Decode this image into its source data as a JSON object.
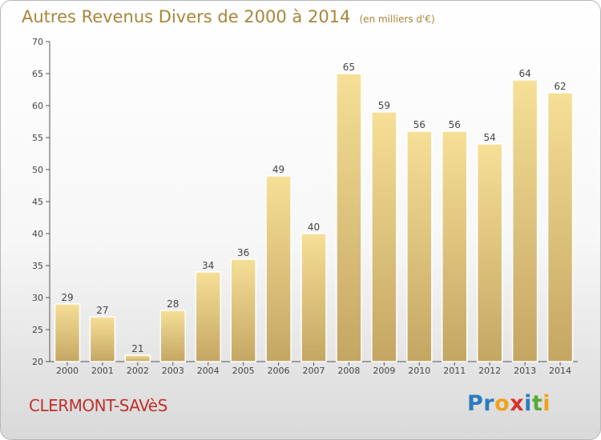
{
  "header": {
    "title": "Autres Revenus Divers de 2000 à 2014",
    "unit": "(en milliers d'€)"
  },
  "footer": {
    "commune": "CLERMONT-SAVèS",
    "logo_letters": [
      "P",
      "r",
      "o",
      "x",
      "i",
      "t",
      "i"
    ],
    "logo_colors": [
      "#2b7bbf",
      "#2b7bbf",
      "#f0a020",
      "#d9332b",
      "#2b7bbf",
      "#5aa832",
      "#f0a020"
    ]
  },
  "colors": {
    "title": "#a8863a",
    "commune": "#c0312b",
    "bar_top": "#f6df96",
    "bar_bottom": "#c4a663",
    "bar_edge": "#ffffff"
  },
  "chart_data": {
    "type": "bar",
    "categories": [
      "2000",
      "2001",
      "2002",
      "2003",
      "2004",
      "2005",
      "2006",
      "2007",
      "2008",
      "2009",
      "2010",
      "2011",
      "2012",
      "2013",
      "2014"
    ],
    "values": [
      29,
      27,
      21,
      28,
      34,
      36,
      49,
      40,
      65,
      59,
      56,
      56,
      54,
      64,
      62
    ],
    "title": "Autres Revenus Divers de 2000 à 2014",
    "subtitle": "(en milliers d'€)",
    "xlabel": "",
    "ylabel": "",
    "ylim": [
      20,
      70
    ],
    "yticks": [
      20,
      25,
      30,
      35,
      40,
      45,
      50,
      55,
      60,
      65,
      70
    ],
    "grid": false,
    "data_labels": true
  }
}
